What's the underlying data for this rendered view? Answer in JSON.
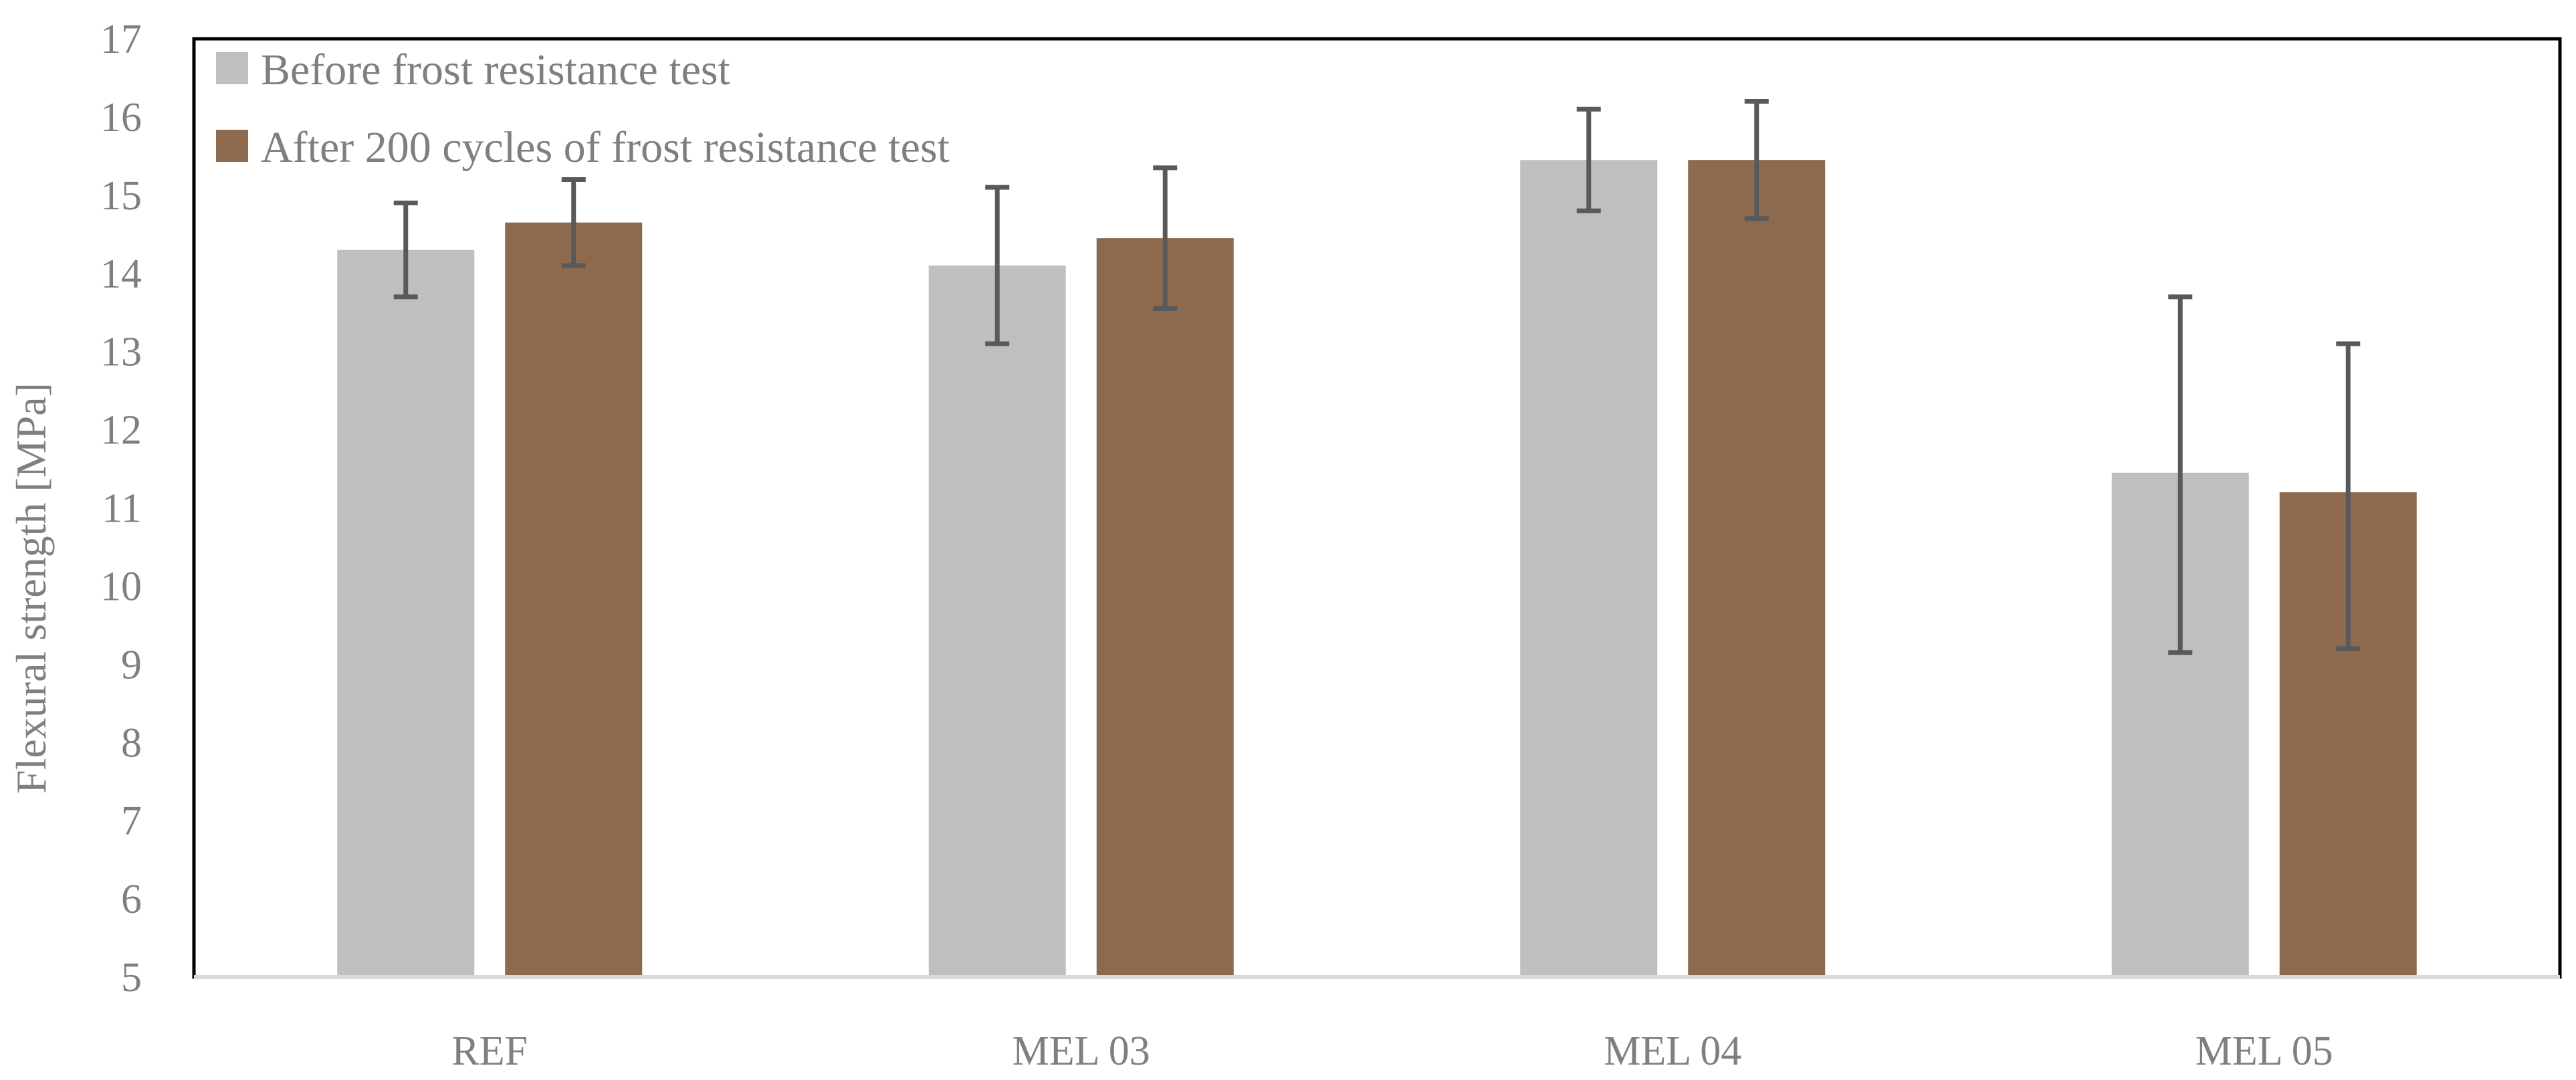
{
  "chart_data": {
    "type": "bar",
    "title": "",
    "xlabel": "",
    "ylabel": "Flexural strength [MPa]",
    "ylim": [
      5,
      17
    ],
    "yticks": [
      5,
      6,
      7,
      8,
      9,
      10,
      11,
      12,
      13,
      14,
      15,
      16,
      17
    ],
    "categories": [
      "REF",
      "MEL 03",
      "MEL 04",
      "MEL 05"
    ],
    "grid": false,
    "legend_position": "top-left",
    "series": [
      {
        "name": "Before frost resistance test",
        "color": "#bfbfbf",
        "values": [
          14.3,
          14.1,
          15.45,
          11.45
        ],
        "error_low": [
          13.7,
          13.1,
          14.8,
          9.15
        ],
        "error_high": [
          14.9,
          15.1,
          16.1,
          13.7
        ]
      },
      {
        "name": "After 200 cycles of frost resistance test",
        "color": "#8d6a4e",
        "values": [
          14.65,
          14.45,
          15.45,
          11.2
        ],
        "error_low": [
          14.1,
          13.55,
          14.7,
          9.2
        ],
        "error_high": [
          15.2,
          15.35,
          16.2,
          13.1
        ]
      }
    ],
    "errorbar_color": "#595959",
    "axis_color": "#d9d9d9",
    "frame_color": "#000000"
  }
}
